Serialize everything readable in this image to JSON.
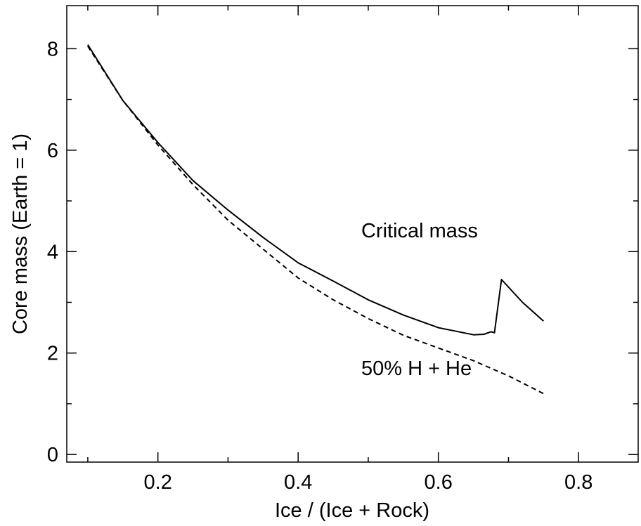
{
  "chart_data": {
    "type": "line",
    "title": "",
    "xlabel": "Ice / (Ice + Rock)",
    "ylabel": "Core mass (Earth = 1)",
    "xlim": [
      0.07,
      0.885
    ],
    "ylim": [
      -0.15,
      8.85
    ],
    "xticks": [
      0.2,
      0.4,
      0.6,
      0.8
    ],
    "xtick_labels": [
      "0.2",
      "0.4",
      "0.6",
      "0.8"
    ],
    "yticks": [
      0,
      2,
      4,
      6,
      8
    ],
    "ytick_labels": [
      "0",
      "2",
      "4",
      "6",
      "8"
    ],
    "grid": false,
    "legend": "none",
    "series": [
      {
        "name": "Critical mass",
        "style": "solid",
        "color": "#000000",
        "x": [
          0.1,
          0.15,
          0.2,
          0.25,
          0.3,
          0.35,
          0.4,
          0.45,
          0.5,
          0.55,
          0.6,
          0.65,
          0.665,
          0.675,
          0.68,
          0.69,
          0.72,
          0.75
        ],
        "y": [
          8.08,
          6.98,
          6.15,
          5.4,
          4.82,
          4.28,
          3.78,
          3.42,
          3.05,
          2.75,
          2.5,
          2.36,
          2.37,
          2.42,
          2.4,
          3.45,
          3.0,
          2.63
        ]
      },
      {
        "name": "50% H + He",
        "style": "dashed",
        "color": "#000000",
        "x": [
          0.1,
          0.15,
          0.2,
          0.25,
          0.3,
          0.35,
          0.4,
          0.45,
          0.5,
          0.55,
          0.6,
          0.65,
          0.7,
          0.75
        ],
        "y": [
          8.05,
          6.98,
          6.1,
          5.32,
          4.62,
          4.05,
          3.48,
          3.05,
          2.68,
          2.35,
          2.1,
          1.85,
          1.55,
          1.2
        ]
      }
    ],
    "annotations": [
      {
        "text": "Critical mass",
        "x": 0.49,
        "y": 4.28
      },
      {
        "text": "50% H + He",
        "x": 0.49,
        "y": 1.57
      }
    ]
  }
}
